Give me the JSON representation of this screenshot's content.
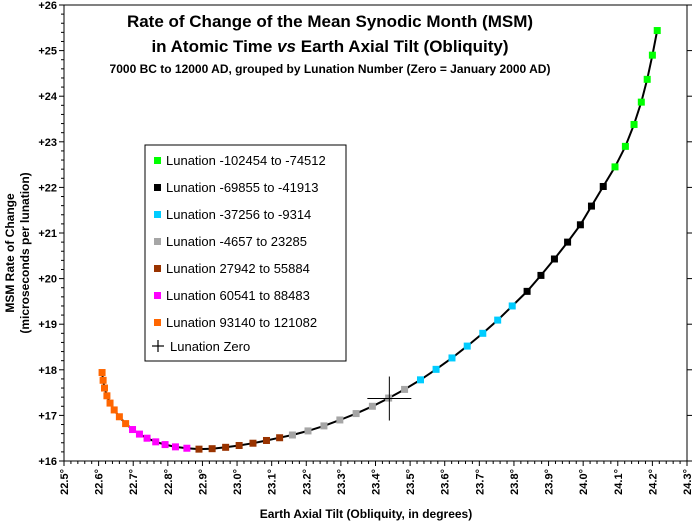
{
  "chart_data": {
    "type": "scatter",
    "title": {
      "line1": "Rate of Change of the Mean Synodic Month (MSM)",
      "line2_pre": "in Atomic Time ",
      "line2_italic": "vs",
      "line2_post": " Earth Axial Tilt (Obliquity)",
      "subtitle": "7000 BC to 12000 AD, grouped by Lunation Number (Zero = January 2000 AD)"
    },
    "xlabel": "Earth Axial Tilt (Obliquity, in degrees)",
    "ylabel_line1": "MSM Rate of Change",
    "ylabel_line2": "(microseconds per lunation)",
    "xlim": [
      22.5,
      24.3
    ],
    "ylim": [
      16,
      26
    ],
    "x_ticks": [
      "22.5°",
      "22.6°",
      "22.7°",
      "22.8°",
      "22.9°",
      "23.0°",
      "23.1°",
      "23.2°",
      "23.3°",
      "23.4°",
      "23.5°",
      "23.6°",
      "23.7°",
      "23.8°",
      "23.9°",
      "24.0°",
      "24.1°",
      "24.2°",
      "24.3°"
    ],
    "y_ticks": [
      "+16",
      "+17",
      "+18",
      "+19",
      "+20",
      "+21",
      "+22",
      "+23",
      "+24",
      "+25",
      "+26"
    ],
    "grid": false,
    "legend_position": "left-middle",
    "series": [
      {
        "name": "Lunation -102454 to -74512",
        "color": "#00ff00",
        "x": [
          24.214,
          24.2,
          24.185,
          24.168,
          24.147,
          24.122,
          24.092
        ],
        "y": [
          25.44,
          24.9,
          24.37,
          23.87,
          23.38,
          22.9,
          22.45
        ]
      },
      {
        "name": "Lunation -69855 to -41913",
        "color": "#000000",
        "x": [
          24.058,
          24.024,
          23.992,
          23.955,
          23.917,
          23.878,
          23.838
        ],
        "y": [
          22.02,
          21.59,
          21.18,
          20.8,
          20.43,
          20.07,
          19.72
        ]
      },
      {
        "name": "Lunation -37256 to -9314",
        "color": "#00ccff",
        "x": [
          23.795,
          23.753,
          23.71,
          23.665,
          23.621,
          23.575,
          23.53
        ],
        "y": [
          19.4,
          19.09,
          18.8,
          18.52,
          18.26,
          18.01,
          17.78
        ]
      },
      {
        "name": "Lunation -4657 to 23285",
        "color": "#a6a6a6",
        "x": [
          23.484,
          23.438,
          23.391,
          23.344,
          23.297,
          23.251,
          23.205,
          23.16
        ],
        "y": [
          17.57,
          17.38,
          17.2,
          17.04,
          16.9,
          16.77,
          16.66,
          16.57
        ]
      },
      {
        "name": "Lunation 27942 to 55884",
        "color": "#993300",
        "x": [
          23.123,
          23.085,
          23.046,
          23.006,
          22.967,
          22.928,
          22.89
        ],
        "y": [
          16.51,
          16.45,
          16.39,
          16.34,
          16.3,
          16.27,
          16.26
        ]
      },
      {
        "name": "Lunation 60541 to 88483",
        "color": "#ff00ff",
        "x": [
          22.855,
          22.822,
          22.792,
          22.765,
          22.74,
          22.718,
          22.698
        ],
        "y": [
          16.28,
          16.31,
          16.36,
          16.42,
          16.5,
          16.59,
          16.69
        ]
      },
      {
        "name": "Lunation 93140 to 121082",
        "color": "#ff6600",
        "x": [
          22.678,
          22.66,
          22.645,
          22.633,
          22.624,
          22.617,
          22.613,
          22.61
        ],
        "y": [
          16.82,
          16.97,
          17.12,
          17.27,
          17.43,
          17.6,
          17.77,
          17.94
        ]
      }
    ],
    "lunation_zero": {
      "name": "Lunation Zero",
      "x": 23.44,
      "y": 17.37
    }
  }
}
